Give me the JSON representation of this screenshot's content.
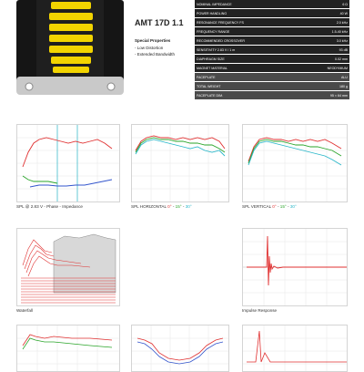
{
  "product": {
    "title": "AMT 17D 1.1",
    "features_heading": "Special Properties",
    "features": [
      "- Low Distortion",
      "- Extended Bandwidth"
    ]
  },
  "specs": [
    {
      "label": "NOMINAL IMPEDANCE",
      "value": "6 Ω"
    },
    {
      "label": "POWER HANDLING",
      "value": "40 W"
    },
    {
      "label": "RESONANCE FREQUENCY FS",
      "value": "2.0 kHz"
    },
    {
      "label": "FREQUENCY RANGE",
      "value": "1.5-40 kHz"
    },
    {
      "label": "RECOMMENDED CROSSOVER",
      "value": "3.0 kHz"
    },
    {
      "label": "SENSITIVITY 2.83 V / 1 m",
      "value": "93 dB"
    },
    {
      "label": "DIAPHRAGM SIZE",
      "value": "0.02 mm"
    },
    {
      "label": "MAGNET MATERIAL",
      "value": "NEODYMIUM"
    },
    {
      "label": "FACEPLATE",
      "value": "ALU"
    },
    {
      "label": "TOTAL WEIGHT",
      "value": "180 g"
    },
    {
      "label": "FACEPLATE DIM.",
      "value": "95 × 64 mm"
    }
  ],
  "captions": {
    "spl_impedance": "SPL @ 2.83 V - Phase - Impedance",
    "spl_horizontal": {
      "prefix": "SPL HORIZONTAL",
      "a": "0°",
      "b": "15°",
      "c": "30°"
    },
    "spl_vertical": {
      "prefix": "SPL VERTICAL",
      "a": "0°",
      "b": "15°",
      "c": "30°"
    },
    "waterfall": "Waterfall",
    "impulse": "Impulse Response"
  },
  "colors": {
    "red": "#e03030",
    "green": "#2aa52a",
    "cyan": "#2ab7c9",
    "blue": "#3355cc",
    "ribbon": "#f2d400",
    "photo_bg": "#151515"
  }
}
